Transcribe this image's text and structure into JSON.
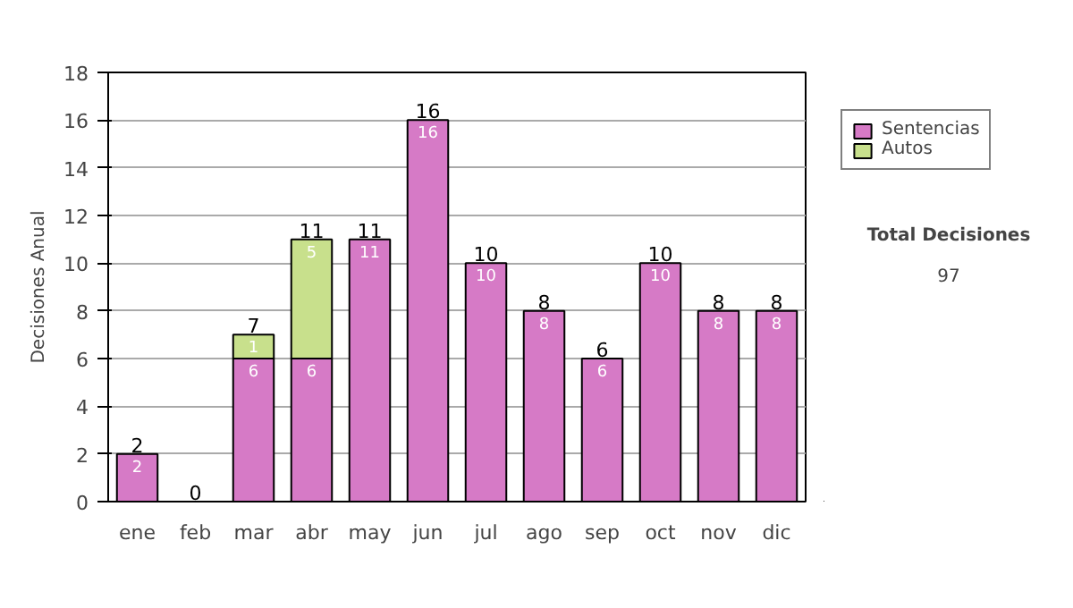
{
  "chart_data": {
    "type": "bar",
    "stacked": true,
    "ylabel": "Decisiones Anual",
    "categories": [
      "ene",
      "feb",
      "mar",
      "abr",
      "may",
      "jun",
      "jul",
      "ago",
      "sep",
      "oct",
      "nov",
      "dic"
    ],
    "series": [
      {
        "name": "Sentencias",
        "color": "#d67ac6",
        "values": [
          2,
          null,
          6,
          6,
          11,
          16,
          10,
          8,
          6,
          10,
          8,
          8
        ],
        "value_labels": [
          "2",
          null,
          "6",
          "6",
          "11",
          "16",
          "10",
          "8",
          "6",
          "10",
          "8",
          "8"
        ]
      },
      {
        "name": "Autos",
        "color": "#c8e08c",
        "values": [
          null,
          null,
          1,
          5,
          null,
          null,
          null,
          null,
          null,
          null,
          null,
          null
        ],
        "value_labels": [
          null,
          null,
          "1",
          "5",
          null,
          null,
          null,
          null,
          null,
          null,
          null,
          null
        ]
      }
    ],
    "totals": [
      "2",
      "0",
      "7",
      "11",
      "11",
      "16",
      "10",
      "8",
      "6",
      "10",
      "8",
      "8"
    ],
    "ylim": [
      0,
      18
    ],
    "yticks": [
      0,
      2,
      4,
      6,
      8,
      10,
      12,
      14,
      16,
      18
    ],
    "grid": "y",
    "legend": "right",
    "annotations": [
      "Total Decisiones",
      "97"
    ]
  }
}
